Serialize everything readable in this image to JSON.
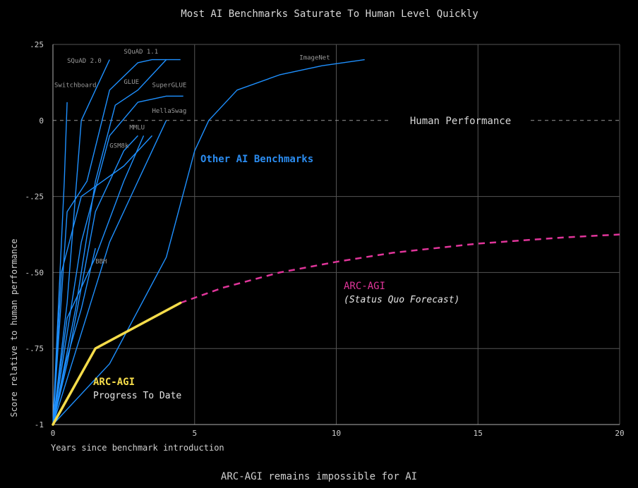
{
  "chart_data": {
    "type": "line",
    "title": "Most AI Benchmarks Saturate To Human Level Quickly",
    "xlabel": "Years since benchmark introduction",
    "ylabel": "Score relative to human performance",
    "footer": "ARC-AGI remains impossible for AI",
    "xlim": [
      0,
      20
    ],
    "ylim": [
      -1,
      0.25
    ],
    "x_ticks": [
      {
        "value": 0,
        "label": "0"
      },
      {
        "value": 5,
        "label": "5"
      },
      {
        "value": 10,
        "label": "10"
      },
      {
        "value": 15,
        "label": "15"
      },
      {
        "value": 20,
        "label": "20"
      }
    ],
    "y_ticks": [
      {
        "value": 0.25,
        "label": ".25"
      },
      {
        "value": 0,
        "label": "0"
      },
      {
        "value": -0.25,
        "label": "-.25"
      },
      {
        "value": -0.5,
        "label": "-.50"
      },
      {
        "value": -0.75,
        "label": "-.75"
      },
      {
        "value": -1,
        "label": "-1"
      }
    ],
    "grid": true,
    "human_line": {
      "y": 0,
      "label": "Human Performance"
    },
    "series": [
      {
        "name": "Switchboard",
        "color": "#1e90ff",
        "x": [
          0,
          0.2,
          0.4,
          0.5
        ],
        "y": [
          -1,
          -0.6,
          -0.2,
          0.06
        ]
      },
      {
        "name": "SQuAD 2.0",
        "color": "#1e90ff",
        "x": [
          0,
          0.5,
          1,
          1.5,
          2
        ],
        "y": [
          -1,
          -0.6,
          0,
          0.1,
          0.2
        ]
      },
      {
        "name": "SQuAD 1.1",
        "color": "#1e90ff",
        "x": [
          0,
          0.5,
          1.2,
          2,
          3,
          3.5,
          4.5
        ],
        "y": [
          -1,
          -0.3,
          -0.2,
          0.1,
          0.19,
          0.2,
          0.2
        ]
      },
      {
        "name": "GLUE",
        "color": "#1e90ff",
        "x": [
          0,
          0.8,
          1.5,
          2.2,
          3,
          4
        ],
        "y": [
          -1,
          -0.62,
          -0.2,
          0.05,
          0.1,
          0.2
        ]
      },
      {
        "name": "SuperGLUE",
        "color": "#1e90ff",
        "x": [
          0,
          1,
          2,
          3,
          4,
          4.6
        ],
        "y": [
          -1,
          -0.4,
          -0.05,
          0.06,
          0.08,
          0.08
        ]
      },
      {
        "name": "ImageNet",
        "color": "#1e90ff",
        "x": [
          0,
          2,
          4,
          5,
          5.5,
          6.5,
          8,
          9.5,
          11
        ],
        "y": [
          -1,
          -0.8,
          -0.45,
          -0.1,
          0,
          0.1,
          0.15,
          0.18,
          0.2
        ]
      },
      {
        "name": "HellaSwag",
        "color": "#1e90ff",
        "x": [
          0,
          1,
          2,
          3,
          3.5,
          4
        ],
        "y": [
          -1,
          -0.7,
          -0.4,
          -0.2,
          -0.1,
          0
        ]
      },
      {
        "name": "MMLU",
        "color": "#1e90ff",
        "x": [
          0,
          0.5,
          1.5,
          2.5,
          3.2
        ],
        "y": [
          -1,
          -0.65,
          -0.45,
          -0.2,
          -0.05
        ]
      },
      {
        "name": "GSM8k",
        "color": "#1e90ff",
        "x": [
          0,
          0.5,
          1.5,
          2.5,
          3
        ],
        "y": [
          -1,
          -0.8,
          -0.3,
          -0.1,
          -0.05
        ]
      },
      {
        "name": "BBH",
        "color": "#1e90ff",
        "x": [
          0,
          0.5,
          1,
          1.5
        ],
        "y": [
          -1,
          -0.78,
          -0.62,
          -0.42
        ]
      },
      {
        "name": "",
        "color": "#1e90ff",
        "x": [
          0,
          0.3,
          1,
          2.5,
          3.5
        ],
        "y": [
          -1,
          -0.5,
          -0.25,
          -0.15,
          -0.05
        ]
      }
    ],
    "labels": [
      {
        "text": "Switchboard",
        "x": 0.05,
        "y": 0.11
      },
      {
        "text": "SQuAD 2.0",
        "x": 0.5,
        "y": 0.19
      },
      {
        "text": "SQuAD 1.1",
        "x": 2.5,
        "y": 0.22
      },
      {
        "text": "GLUE",
        "x": 2.5,
        "y": 0.12
      },
      {
        "text": "SuperGLUE",
        "x": 3.5,
        "y": 0.11
      },
      {
        "text": "ImageNet",
        "x": 8.7,
        "y": 0.2
      },
      {
        "text": "HellaSwag",
        "x": 3.5,
        "y": 0.025
      },
      {
        "text": "MMLU",
        "x": 2.7,
        "y": -0.03
      },
      {
        "text": "GSM8k",
        "x": 2.0,
        "y": -0.09
      },
      {
        "text": "BBH",
        "x": 1.5,
        "y": -0.47
      }
    ],
    "other_label": "Other AI Benchmarks",
    "arc_progress": {
      "label": "ARC-AGI",
      "sublabel": "Progress To Date",
      "color": "#f5dc4a",
      "x": [
        0,
        1.5,
        4.5
      ],
      "y": [
        -1,
        -0.75,
        -0.6
      ]
    },
    "arc_forecast": {
      "label": "ARC-AGI",
      "sublabel": "(Status Quo Forecast)",
      "color": "#e0359a",
      "x": [
        4.5,
        6,
        8,
        10,
        12,
        15,
        18,
        20
      ],
      "y": [
        -0.6,
        -0.55,
        -0.5,
        -0.465,
        -0.435,
        -0.405,
        -0.385,
        -0.375
      ]
    }
  }
}
